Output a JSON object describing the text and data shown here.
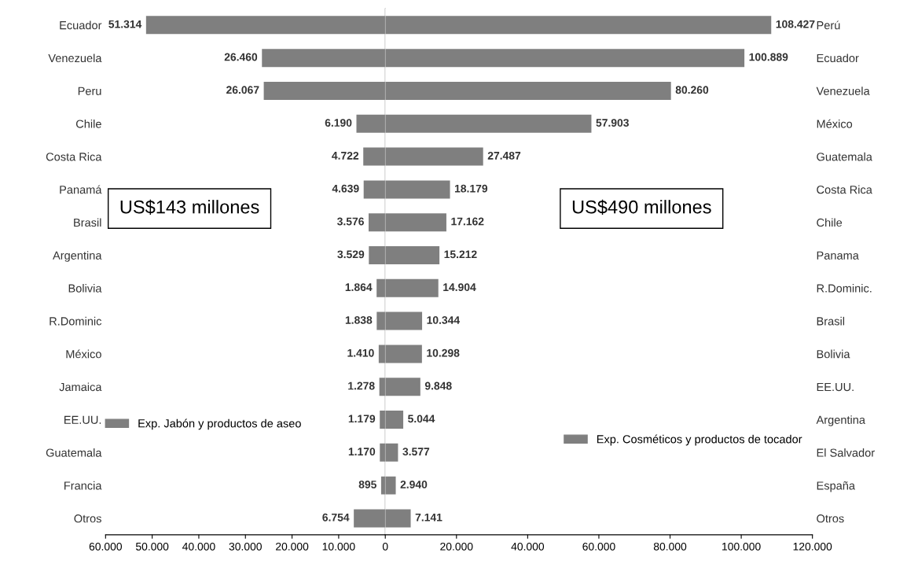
{
  "chart_data": [
    {
      "type": "bar",
      "orientation": "horizontal",
      "categories": [
        "Ecuador",
        "Venezuela",
        "Peru",
        "Chile",
        "Costa Rica",
        "Panamá",
        "Brasil",
        "Argentina",
        "Bolivia",
        "R.Dominic",
        "México",
        "Jamaica",
        "EE.UU.",
        "Guatemala",
        "Francia",
        "Otros"
      ],
      "series": [
        {
          "name": "Exp. Jabón y productos de aseo",
          "color": "#7f7f7f",
          "values": [
            51314,
            26460,
            26067,
            6190,
            4722,
            4639,
            3576,
            3529,
            1864,
            1838,
            1410,
            1278,
            1179,
            1170,
            895,
            6754
          ],
          "value_labels": [
            "51.314",
            "26.460",
            "26.067",
            "6.190",
            "4.722",
            "4.639",
            "3.576",
            "3.529",
            "1.864",
            "1.838",
            "1.410",
            "1.278",
            "1.179",
            "1.170",
            "895",
            "6.754"
          ]
        }
      ],
      "xlim": [
        60000,
        0
      ],
      "xticks": [
        {
          "value": 60000,
          "label": "60.000"
        },
        {
          "value": 50000,
          "label": "50.000"
        },
        {
          "value": 40000,
          "label": "40.000"
        },
        {
          "value": 30000,
          "label": "30.000"
        },
        {
          "value": 20000,
          "label": "20.000"
        },
        {
          "value": 10000,
          "label": "10.000"
        },
        0
      ],
      "legend": "bottom",
      "grid": false,
      "annotations": [
        "US$143 millones"
      ]
    },
    {
      "type": "bar",
      "orientation": "horizontal",
      "categories": [
        "Perú",
        "Ecuador",
        "Venezuela",
        "México",
        "Guatemala",
        "Costa Rica",
        "Chile",
        "Panama",
        "R.Dominic.",
        "Brasil",
        "Bolivia",
        "EE.UU.",
        "Argentina",
        "El Salvador",
        "España",
        "Otros"
      ],
      "series": [
        {
          "name": "Exp. Cosméticos y productos de tocador",
          "color": "#7f7f7f",
          "values": [
            108427,
            100889,
            80260,
            57903,
            27487,
            18179,
            17162,
            15212,
            14904,
            10344,
            10298,
            9848,
            5044,
            3577,
            2940,
            7141
          ],
          "value_labels": [
            "108.427",
            "100.889",
            "80.260",
            "57.903",
            "27.487",
            "18.179",
            "17.162",
            "15.212",
            "14.904",
            "10.344",
            "10.298",
            "9.848",
            "5.044",
            "3.577",
            "2.940",
            "7.141"
          ]
        }
      ],
      "xlim": [
        0,
        120000
      ],
      "xticks": [
        {
          "value": 20000,
          "label": "20.000"
        },
        {
          "value": 40000,
          "label": "40.000"
        },
        {
          "value": 60000,
          "label": "60.000"
        },
        {
          "value": 80000,
          "label": "80.000"
        },
        {
          "value": 100000,
          "label": "100.000"
        },
        {
          "value": 120000,
          "label": "120.000"
        }
      ],
      "legend": "bottom right",
      "grid": false,
      "annotations": [
        "US$490 millones"
      ]
    }
  ]
}
